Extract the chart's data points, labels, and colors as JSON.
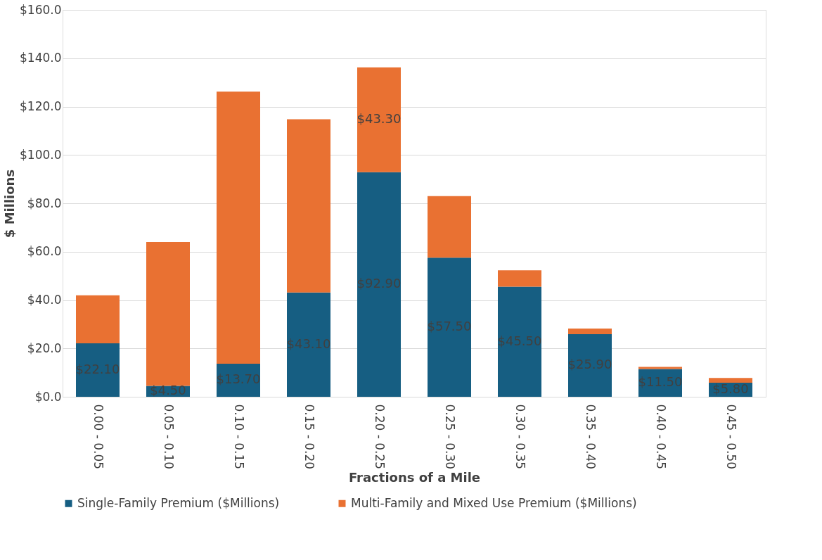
{
  "chart_data": {
    "type": "bar",
    "stacked": true,
    "xlabel": "Fractions of a Mile",
    "ylabel": "$ Millions",
    "categories": [
      "0.00 - 0.05",
      "0.05 - 0.10",
      "0.10 - 0.15",
      "0.15 - 0.20",
      "0.20 - 0.25",
      "0.25 - 0.30",
      "0.30 - 0.35",
      "0.35 - 0.40",
      "0.40 - 0.45",
      "0.45 - 0.50"
    ],
    "series": [
      {
        "name": "Single-Family Premium ($Millions)",
        "color": "#165e82",
        "values": [
          22.1,
          4.5,
          13.7,
          43.1,
          92.9,
          57.5,
          45.5,
          25.9,
          11.5,
          5.8
        ],
        "value_labels": [
          "$22.10",
          "$4.50",
          "$13.70",
          "$43.10",
          "$92.90",
          "$57.50",
          "$45.50",
          "$25.90",
          "$11.50",
          "$5.80"
        ]
      },
      {
        "name": "Multi-Family and Mixed Use Premium ($Millions)",
        "color": "#e97132",
        "values": [
          19.9,
          59.5,
          112.5,
          71.7,
          43.3,
          25.5,
          6.8,
          2.3,
          0.9,
          2.0
        ],
        "value_labels": [
          null,
          null,
          null,
          null,
          "$43.30",
          null,
          null,
          null,
          null,
          null
        ]
      }
    ],
    "ylim": [
      0,
      160
    ],
    "yticks": [
      {
        "value": 0,
        "label": "$0.0"
      },
      {
        "value": 20,
        "label": "$20.0"
      },
      {
        "value": 40,
        "label": "$40.0"
      },
      {
        "value": 60,
        "label": "$60.0"
      },
      {
        "value": 80,
        "label": "$80.0"
      },
      {
        "value": 100,
        "label": "$100.0"
      },
      {
        "value": 120,
        "label": "$120.0"
      },
      {
        "value": 140,
        "label": "$140.0"
      },
      {
        "value": 160,
        "label": "$160.0"
      }
    ],
    "grid": "y",
    "legend": "bottom"
  }
}
